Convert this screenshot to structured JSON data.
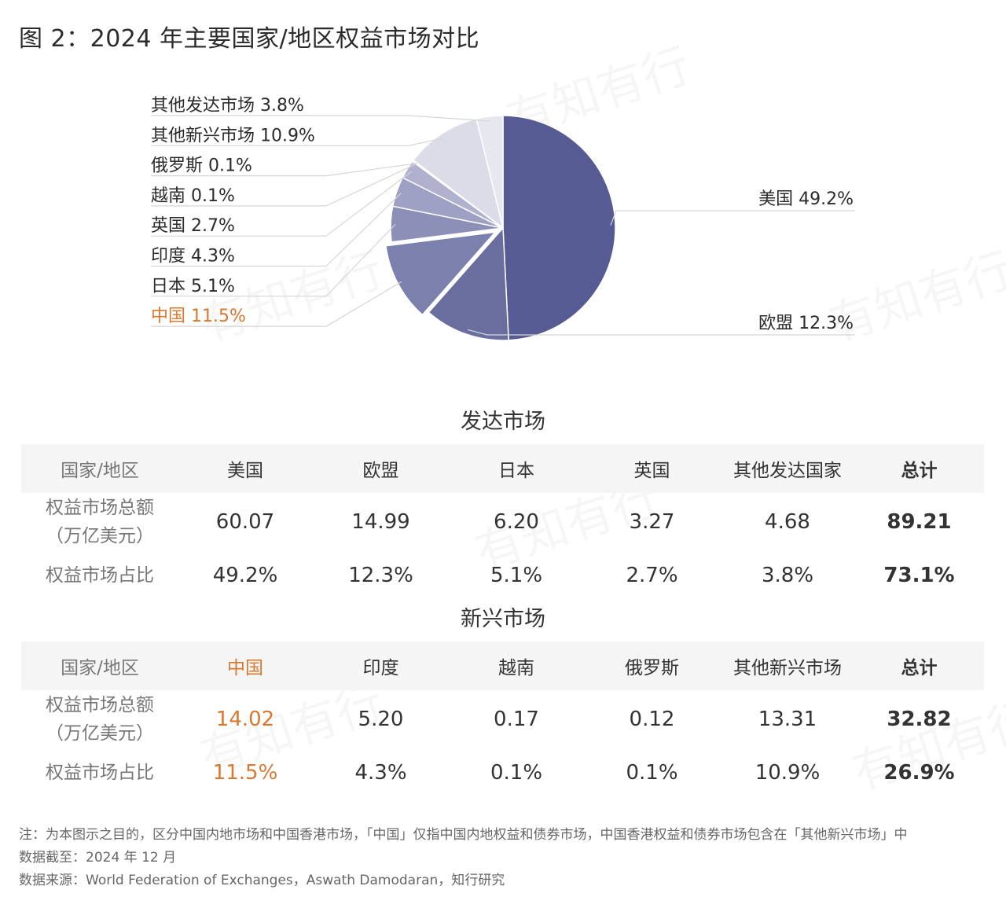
{
  "title": "图 2：2024 年主要国家/地区权益市场对比",
  "watermark": "有知有行",
  "chart_data": {
    "type": "pie",
    "title": "图 2：2024 年主要国家/地区权益市场对比",
    "unit": "%",
    "start": "top, clockwise",
    "slices": [
      {
        "name": "美国",
        "value": 49.2,
        "label": "美国 49.2%",
        "color": "#575b94",
        "side": "right"
      },
      {
        "name": "欧盟",
        "value": 12.3,
        "label": "欧盟 12.3%",
        "color": "#696e9f",
        "side": "right"
      },
      {
        "name": "中国",
        "value": 11.5,
        "label": "中国 11.5%",
        "color": "#7b80ad",
        "side": "left",
        "highlight": true,
        "exploded": true
      },
      {
        "name": "日本",
        "value": 5.1,
        "label": "日本 5.1%",
        "color": "#8c8fb8",
        "side": "left"
      },
      {
        "name": "印度",
        "value": 4.3,
        "label": "印度 4.3%",
        "color": "#9ea1c4",
        "side": "left"
      },
      {
        "name": "英国",
        "value": 2.7,
        "label": "英国 2.7%",
        "color": "#afb1cf",
        "side": "left"
      },
      {
        "name": "越南",
        "value": 0.1,
        "label": "越南 0.1%",
        "color": "#c0c2da",
        "side": "left"
      },
      {
        "name": "俄罗斯",
        "value": 0.1,
        "label": "俄罗斯 0.1%",
        "color": "#cdcee2",
        "side": "left"
      },
      {
        "name": "其他新兴市场",
        "value": 10.9,
        "label": "其他新兴市场 10.9%",
        "color": "#dcdce9",
        "side": "left"
      },
      {
        "name": "其他发达市场",
        "value": 3.8,
        "label": "其他发达市场 3.8%",
        "color": "#e7e7f0",
        "side": "left"
      }
    ],
    "highlight_color": "#d9782f"
  },
  "developed": {
    "title": "发达市场",
    "headers": [
      "国家/地区",
      "美国",
      "欧盟",
      "日本",
      "英国",
      "其他发达国家",
      "总计"
    ],
    "row1_label_a": "权益市场总额",
    "row1_label_b": "（万亿美元）",
    "row1": [
      "60.07",
      "14.99",
      "6.20",
      "3.27",
      "4.68",
      "89.21"
    ],
    "row2_label": "权益市场占比",
    "row2": [
      "49.2%",
      "12.3%",
      "5.1%",
      "2.7%",
      "3.8%",
      "73.1%"
    ]
  },
  "emerging": {
    "title": "新兴市场",
    "headers": [
      "国家/地区",
      "中国",
      "印度",
      "越南",
      "俄罗斯",
      "其他新兴市场",
      "总计"
    ],
    "row1_label_a": "权益市场总额",
    "row1_label_b": "（万亿美元）",
    "row1": [
      "14.02",
      "5.20",
      "0.17",
      "0.12",
      "13.31",
      "32.82"
    ],
    "row2_label": "权益市场占比",
    "row2": [
      "11.5%",
      "4.3%",
      "0.1%",
      "0.1%",
      "10.9%",
      "26.9%"
    ]
  },
  "notes": {
    "note": "注：为本图示之目的，区分中国内地市场和中国香港市场，「中国」仅指中国内地权益和债券市场，中国香港权益和债券市场包含在「其他新兴市场」中",
    "date": "数据截至：2024 年 12 月",
    "source": "数据来源：World Federation of Exchanges，Aswath Damodaran，知行研究"
  }
}
